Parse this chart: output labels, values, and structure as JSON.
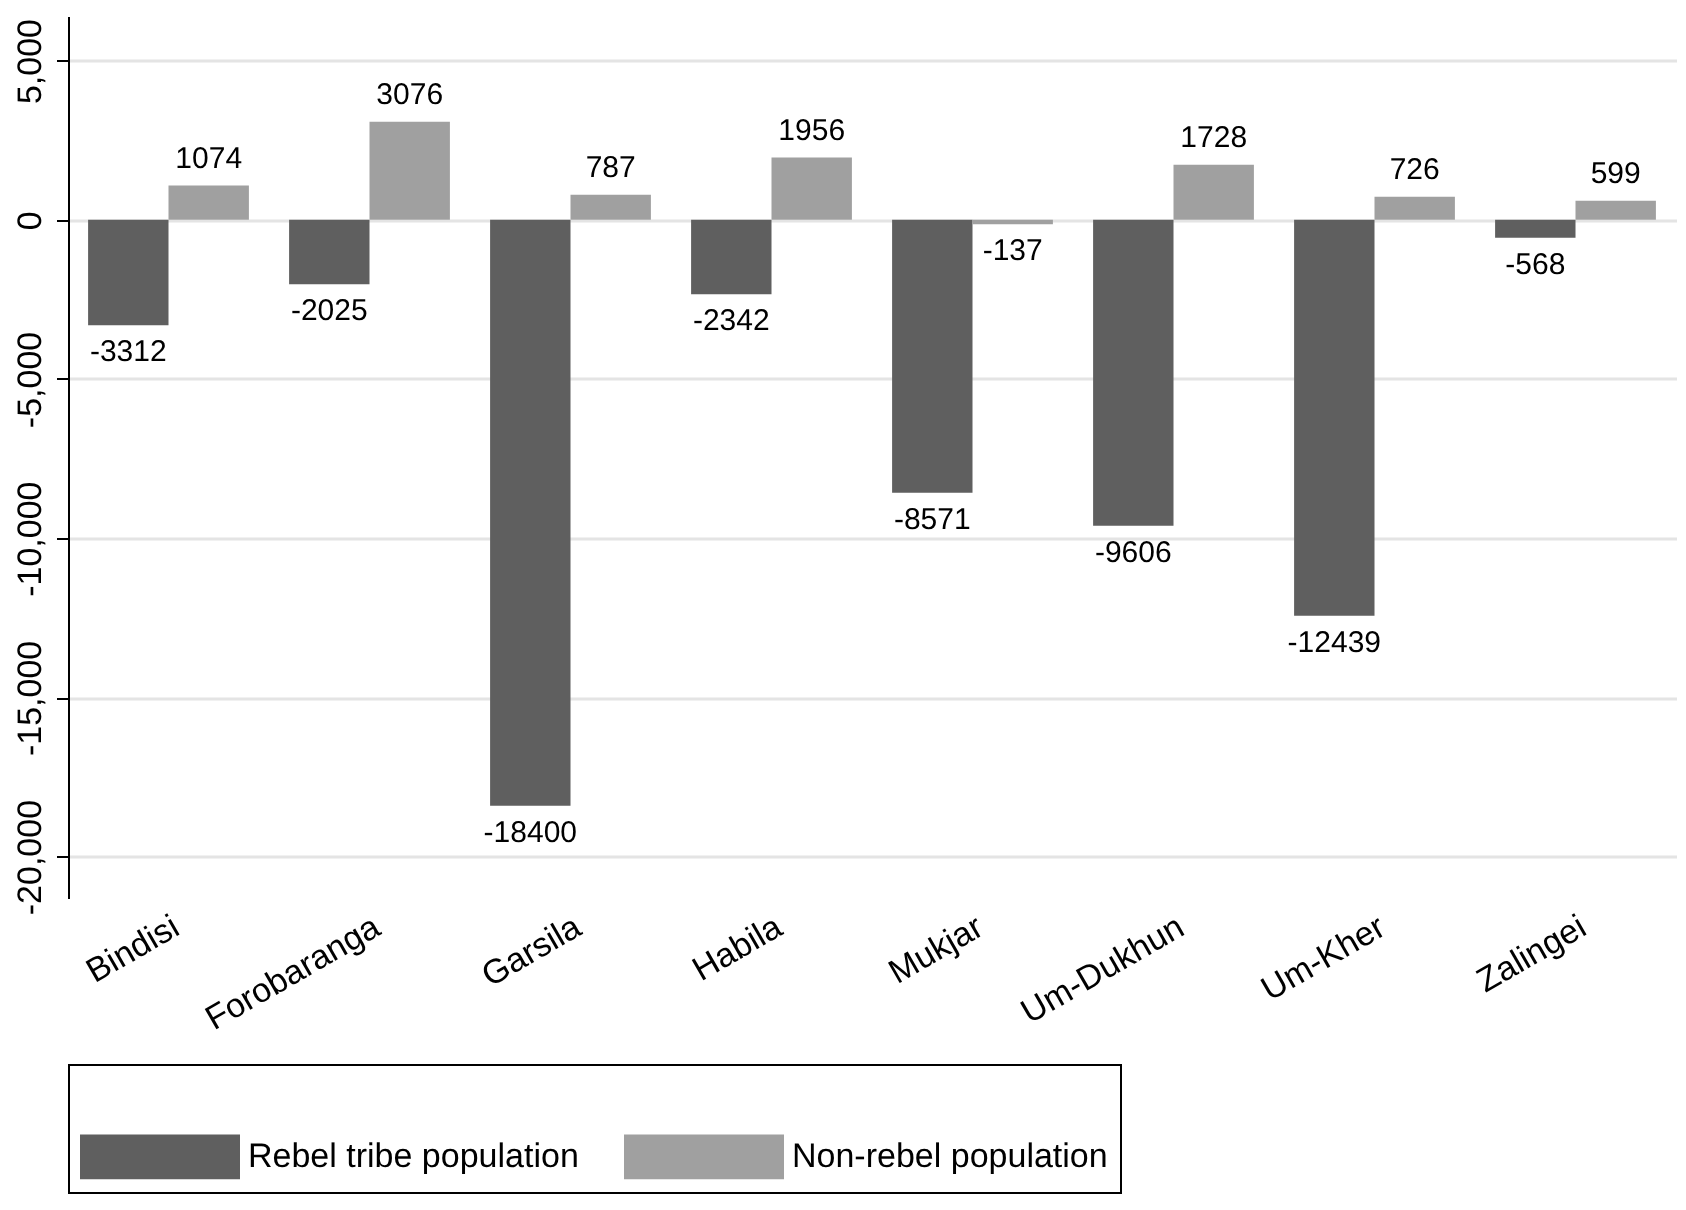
{
  "chart_data": {
    "type": "bar",
    "categories": [
      "Bindisi",
      "Forobaranga",
      "Garsila",
      "Habila",
      "Mukjar",
      "Um-Dukhun",
      "Um-Kher",
      "Zalingei"
    ],
    "series": [
      {
        "name": "Rebel tribe population",
        "color": "#5f5f5f",
        "values": [
          -3312,
          -2025,
          -18400,
          -2342,
          -8571,
          -9606,
          -12439,
          -568
        ]
      },
      {
        "name": "Non-rebel population",
        "color": "#a0a0a0",
        "values": [
          1074,
          3076,
          787,
          1956,
          -137,
          1728,
          726,
          599
        ]
      }
    ],
    "ylim": [
      -21300,
      6400
    ],
    "yticks": [
      {
        "value": -20000,
        "label": "-20,000"
      },
      {
        "value": -15000,
        "label": "-15,000"
      },
      {
        "value": -10000,
        "label": "-10,000"
      },
      {
        "value": -5000,
        "label": "-5,000"
      },
      0,
      {
        "value": 5000,
        "label": "5,000"
      }
    ],
    "grid": "y",
    "legend": "bottom",
    "data_labels": true
  }
}
